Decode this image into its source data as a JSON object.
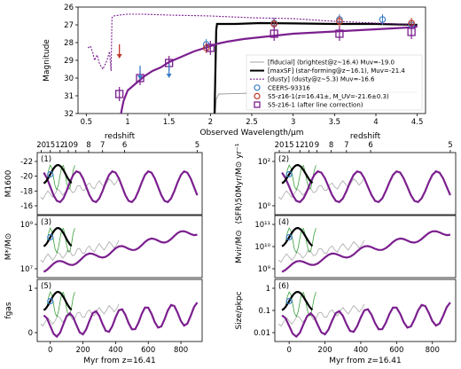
{
  "chart_data": [
    {
      "type": "line",
      "panel": "sed",
      "xlabel": "Observed Wavelength/μm",
      "ylabel": "Magnitude",
      "xlim": [
        0.4,
        4.6
      ],
      "ylim": [
        32,
        26
      ],
      "xticks": [
        0.5,
        1.0,
        1.5,
        2.0,
        2.5,
        3.0,
        3.5,
        4.0,
        4.5
      ],
      "yticks": [
        26,
        27,
        28,
        29,
        30,
        31,
        32
      ],
      "series": [
        {
          "name": "[fiducial] (brightest@z~16.4) Muv=-19.0",
          "color": "#999999",
          "style": "thin",
          "x": [
            2.06,
            2.07,
            2.1,
            2.5,
            3.0,
            3.5,
            4.0,
            4.5
          ],
          "y": [
            32,
            31.2,
            30.9,
            30.85,
            30.82,
            30.8,
            30.8,
            30.8
          ]
        },
        {
          "name": "[maxSF] (star-forming@z~16.1), Muv=-21.4",
          "color": "#000000",
          "style": "thick",
          "x": [
            2.05,
            2.07,
            2.08,
            2.3,
            2.6,
            3.0,
            3.5,
            4.0,
            4.5
          ],
          "y": [
            32,
            27.3,
            26.95,
            26.95,
            26.9,
            26.92,
            26.95,
            26.95,
            27.0
          ]
        },
        {
          "name": "[dusty] (dusty@z~5.3) Muv=-16.6",
          "color": "#7b1f8e",
          "style": "dotted",
          "x": [
            0.52,
            0.55,
            0.58,
            0.6,
            0.63,
            0.66,
            0.7,
            0.75,
            0.78,
            0.8,
            0.81,
            0.83,
            0.9,
            1.0,
            1.2,
            1.5,
            2.0,
            2.5,
            3.0,
            3.5,
            4.0,
            4.5
          ],
          "y": [
            28.3,
            28.2,
            28.6,
            29.0,
            28.7,
            29.2,
            29.5,
            29.0,
            28.5,
            29.6,
            26.6,
            26.5,
            26.45,
            26.4,
            26.4,
            26.45,
            26.5,
            26.6,
            26.65,
            26.8,
            26.9,
            27.0
          ]
        },
        {
          "name": "S5-z16-1 model",
          "color": "#7b1f8e",
          "style": "solid",
          "x": [
            0.92,
            0.95,
            1.0,
            1.1,
            1.2,
            1.3,
            1.4,
            1.5,
            1.6,
            1.7,
            1.8,
            1.9,
            2.0,
            2.1,
            2.2,
            2.4,
            2.6,
            2.8,
            3.0,
            3.2,
            3.4,
            3.6,
            3.8,
            4.0,
            4.2,
            4.4,
            4.5
          ],
          "y": [
            32,
            31.3,
            30.7,
            30.3,
            29.9,
            29.6,
            29.4,
            29.1,
            28.9,
            28.7,
            28.5,
            28.35,
            28.2,
            28.05,
            27.95,
            27.8,
            27.7,
            27.6,
            27.5,
            27.45,
            27.4,
            27.35,
            27.3,
            27.25,
            27.2,
            27.15,
            27.1
          ]
        }
      ],
      "points": [
        {
          "series": "CEERS-93316",
          "color": "#3a7ec6",
          "x": [
            1.95,
            2.77,
            3.56,
            4.08,
            4.43
          ],
          "y": [
            28.1,
            26.9,
            26.7,
            26.7,
            27.0
          ]
        },
        {
          "series": "S5-z16-1",
          "color": "#c0392b",
          "x": [
            1.95,
            2.77,
            3.56,
            4.43
          ],
          "y": [
            28.3,
            26.95,
            26.8,
            26.9
          ]
        },
        {
          "series": "S5-z16-1 (after line correction)",
          "color": "#7b1f8e",
          "x": [
            0.9,
            1.15,
            1.5,
            2.0,
            2.77,
            3.56,
            4.43
          ],
          "y": [
            30.9,
            30.0,
            29.15,
            28.3,
            27.5,
            27.5,
            27.4
          ]
        }
      ],
      "upper_limits": [
        {
          "color": "#c0392b",
          "x": [
            0.9
          ],
          "y": [
            28.5
          ]
        },
        {
          "color": "#3a7ec6",
          "x": [
            1.15,
            1.5
          ],
          "y": [
            29.7,
            29.6
          ]
        }
      ],
      "legend": [
        "[fiducial] (brightest@z~16.4) Muv=-19.0",
        "[maxSF] (star-forming@z~16.1), Muv=-21.4",
        "[dusty] (dusty@z~5.3) Muv=-16.6",
        "CEERS-93316",
        "S5-z16-1(z=16.41±, M_UV=-21.6±0.3)",
        "S5-z16-1 (after line correction)"
      ],
      "legend_placement": "lower-right"
    },
    {
      "type": "line",
      "panel": "grid-left",
      "top_axis_label": "redshift",
      "top_ticks": [
        "20",
        "15",
        "12",
        "10",
        "9",
        "8",
        "7",
        "6",
        "5"
      ],
      "xlabel": "Myr from z=16.41",
      "xlim": [
        -80,
        930
      ],
      "xticks": [
        0,
        200,
        400,
        600,
        800
      ],
      "subplots": [
        {
          "id": "(1)",
          "ylabel": "M1600",
          "yticks": [
            "-22",
            "-20",
            "-18",
            "-16"
          ]
        },
        {
          "id": "(3)",
          "ylabel": "M*/M⊙",
          "yticks": [
            "10⁹",
            "10⁷"
          ]
        },
        {
          "id": "(5)",
          "ylabel": "fgas",
          "yticks": [
            "1",
            "0"
          ]
        }
      ]
    },
    {
      "type": "line",
      "panel": "grid-right",
      "top_axis_label": "redshift",
      "top_ticks": [
        "20",
        "15",
        "12",
        "10",
        "9",
        "8",
        "7",
        "6",
        "5"
      ],
      "xlabel": "Myr from z=16.41",
      "xlim": [
        -80,
        930
      ],
      "xticks": [
        0,
        200,
        400,
        600,
        800
      ],
      "subplots": [
        {
          "id": "(2)",
          "ylabel": "⟨SFR⟩50Myr/M⊙ yr⁻¹",
          "yticks": [
            "10²",
            "10⁰"
          ]
        },
        {
          "id": "(4)",
          "ylabel": "Mvir/M⊙",
          "yticks": [
            "10¹¹",
            "10¹⁰",
            "10⁹"
          ]
        },
        {
          "id": "(6)",
          "ylabel": "Size/pkpc",
          "yticks": [
            "1",
            "0.1",
            "0.01"
          ]
        }
      ]
    }
  ]
}
